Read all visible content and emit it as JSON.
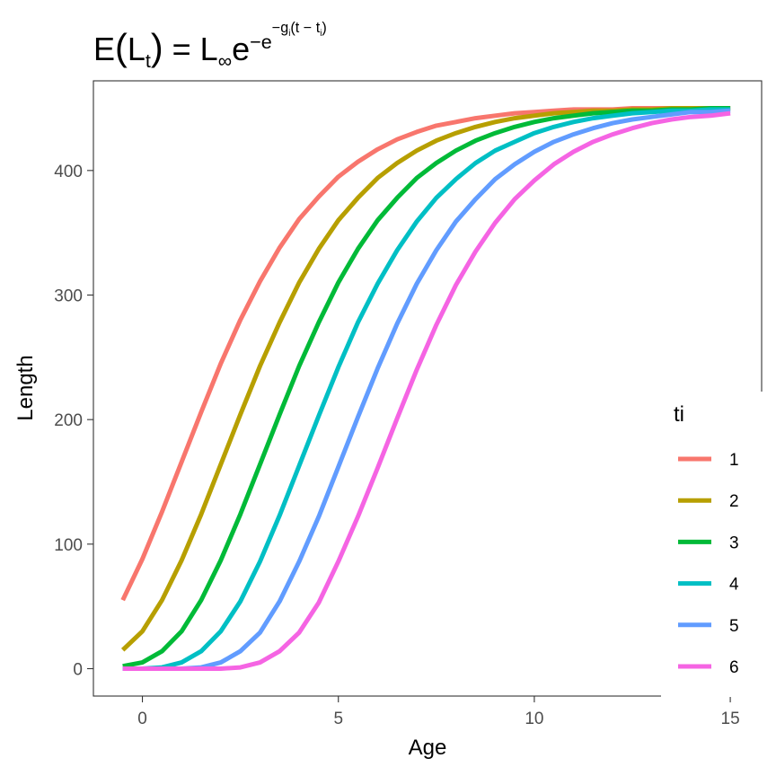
{
  "chart_data": {
    "type": "line",
    "title": "E(L_t) = L∞ e^(−e^(−g_i(t − t_i)))",
    "title_parts": {
      "lhs_e": "E",
      "lhs_l": "L",
      "lhs_sub": "t",
      "eq": " = L",
      "inf": "∞",
      "e": "e",
      "exp": "−e",
      "exp2": "−g",
      "exp2_sub": "i",
      "exp2_rest": "(t − t",
      "exp2_sub2": "i",
      "exp2_close": ")"
    },
    "xlabel": "Age",
    "ylabel": "Length",
    "xlim": [
      -1.25,
      15.8
    ],
    "ylim": [
      -22,
      472
    ],
    "x_ticks": [
      0,
      5,
      10,
      15
    ],
    "y_ticks": [
      0,
      100,
      200,
      300,
      400
    ],
    "grid": false,
    "legend": {
      "title": "ti",
      "placement": "right"
    },
    "x": [
      -0.5,
      0,
      0.5,
      1,
      1.5,
      2,
      2.5,
      3,
      3.5,
      4,
      4.5,
      5,
      5.5,
      6,
      6.5,
      7,
      7.5,
      8,
      8.5,
      9,
      9.5,
      10,
      10.5,
      11,
      11.5,
      12,
      12.5,
      13,
      13.5,
      14,
      14.5,
      15
    ],
    "series": [
      {
        "name": "1",
        "color": "#F8766D",
        "values": [
          55,
          88,
          126,
          166,
          206,
          245,
          280,
          311,
          338,
          361,
          379,
          395,
          407,
          417,
          425,
          431,
          436,
          439,
          442,
          444,
          446,
          447,
          448,
          449,
          449,
          449,
          450,
          450,
          450,
          450,
          450,
          450
        ]
      },
      {
        "name": "2",
        "color": "#B79F00",
        "values": [
          15,
          30,
          55,
          87,
          124,
          164,
          204,
          243,
          278,
          310,
          337,
          360,
          378,
          394,
          406,
          416,
          424,
          430,
          435,
          439,
          442,
          444,
          446,
          447,
          448,
          448,
          449,
          449,
          450,
          450,
          450,
          450
        ]
      },
      {
        "name": "3",
        "color": "#00BA38",
        "values": [
          2,
          5,
          14,
          30,
          55,
          87,
          124,
          164,
          204,
          243,
          278,
          310,
          337,
          360,
          378,
          394,
          406,
          416,
          424,
          430,
          435,
          439,
          442,
          444,
          446,
          447,
          448,
          448,
          449,
          449,
          450,
          450
        ]
      },
      {
        "name": "4",
        "color": "#00BFC4",
        "values": [
          0,
          0,
          1,
          5,
          14,
          30,
          54,
          86,
          123,
          163,
          203,
          242,
          278,
          309,
          336,
          359,
          378,
          393,
          406,
          416,
          423,
          430,
          435,
          439,
          442,
          444,
          446,
          447,
          448,
          448,
          449,
          449
        ]
      },
      {
        "name": "5",
        "color": "#619CFF",
        "values": [
          0,
          0,
          0,
          0,
          1,
          5,
          14,
          29,
          54,
          86,
          122,
          162,
          202,
          241,
          277,
          309,
          336,
          359,
          377,
          393,
          405,
          415,
          423,
          429,
          434,
          438,
          441,
          443,
          445,
          447,
          447,
          448
        ]
      },
      {
        "name": "6",
        "color": "#F564E3",
        "values": [
          0,
          0,
          0,
          0,
          0,
          0,
          1,
          5,
          14,
          29,
          53,
          86,
          122,
          161,
          201,
          240,
          276,
          308,
          335,
          358,
          377,
          392,
          405,
          415,
          423,
          429,
          434,
          438,
          441,
          443,
          444,
          446
        ]
      }
    ]
  }
}
